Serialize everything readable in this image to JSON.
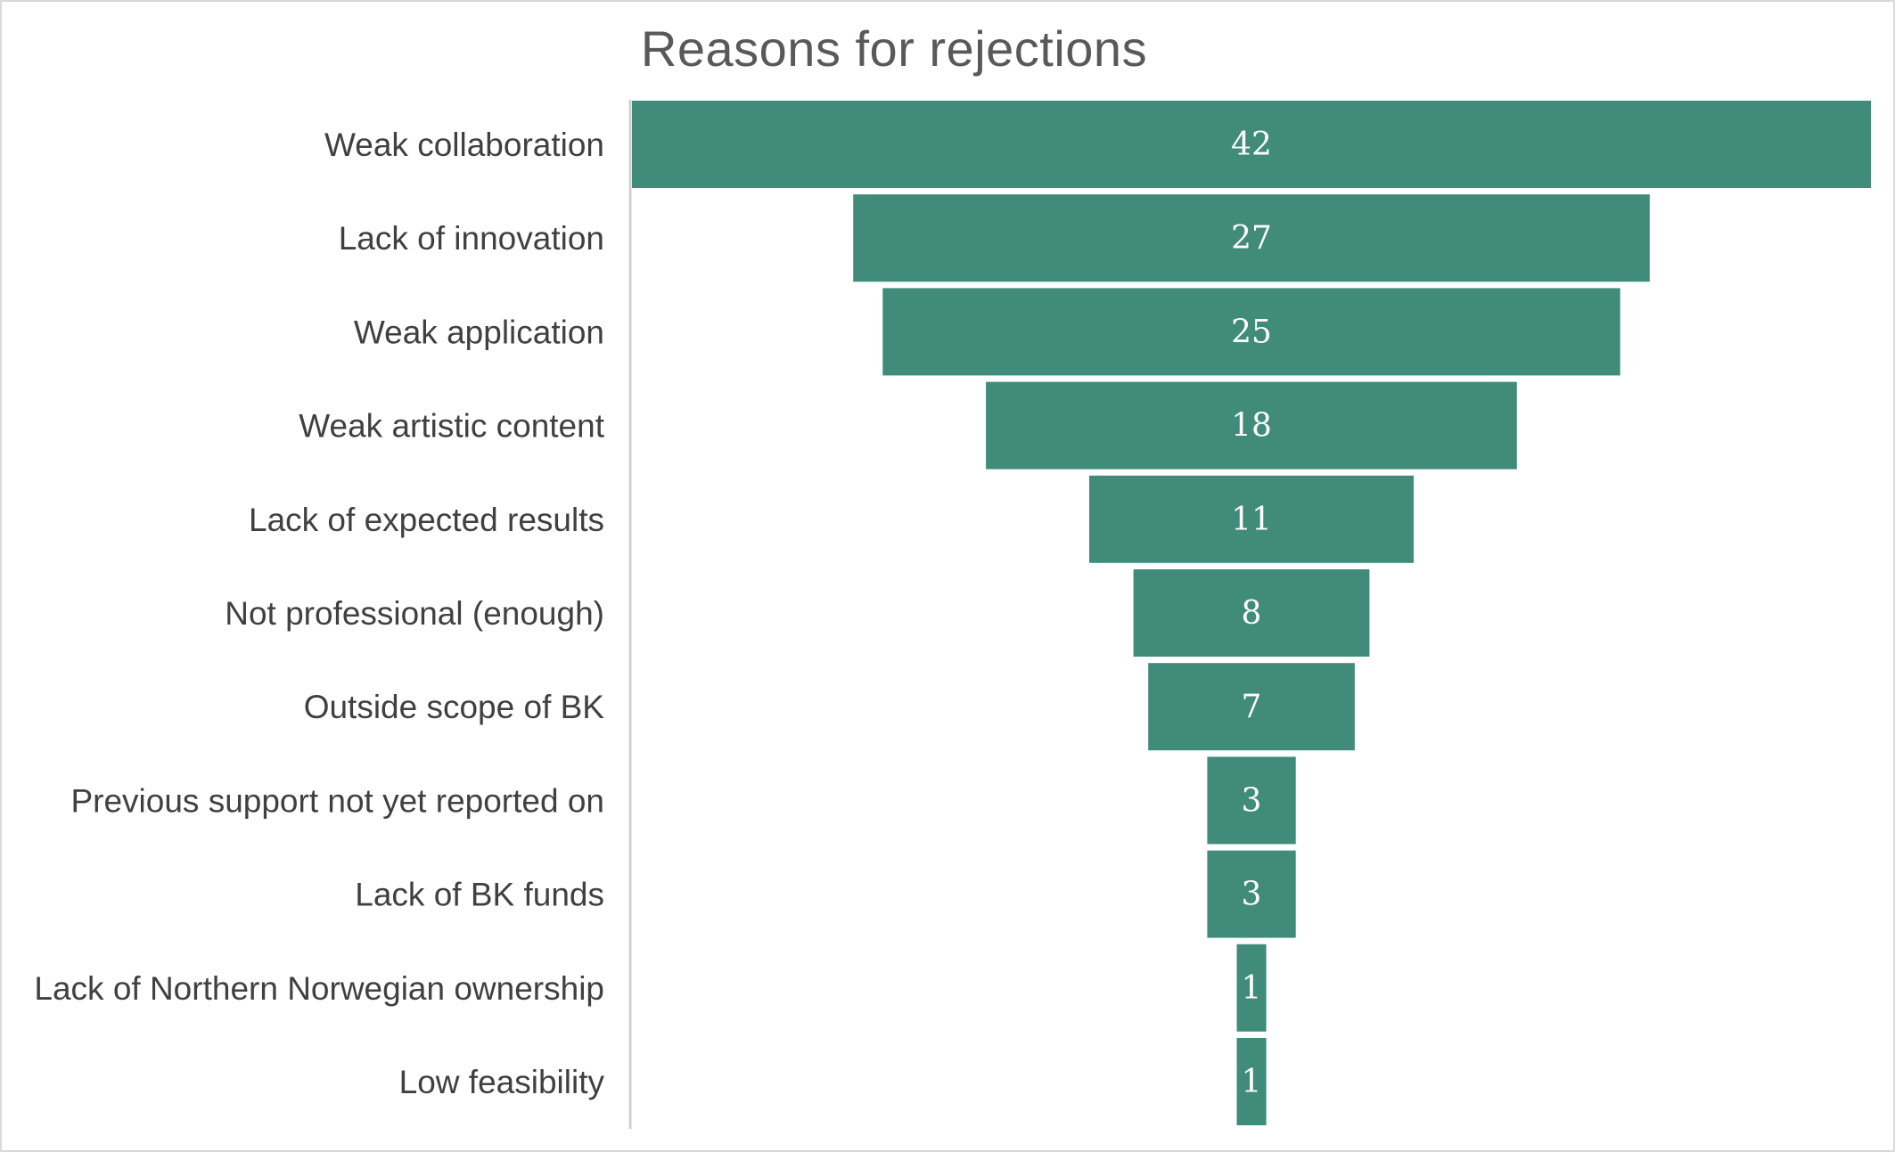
{
  "chart_data": {
    "type": "bar",
    "variant": "funnel",
    "title": "Reasons for rejections",
    "categories": [
      "Weak collaboration",
      "Lack of innovation",
      "Weak application",
      "Weak artistic content",
      "Lack of expected results",
      "Not professional (enough)",
      "Outside scope of BK",
      "Previous support not yet reported on",
      "Lack of BK funds",
      "Lack of Northern Norwegian ownership",
      "Low feasibility"
    ],
    "values": [
      42,
      27,
      25,
      18,
      11,
      8,
      7,
      3,
      3,
      1,
      1
    ],
    "bar_color": "#408B7A",
    "data_labels": true,
    "legend": "none",
    "grid": false
  }
}
